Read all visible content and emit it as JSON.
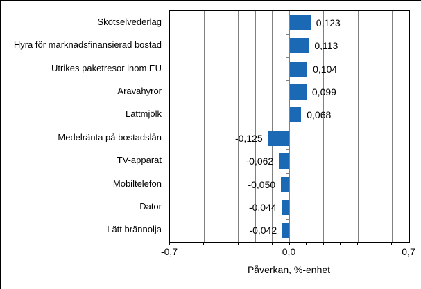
{
  "chart_data": {
    "type": "bar",
    "orientation": "horizontal",
    "xlabel": "Påverkan, %-enhet",
    "categories": [
      "Skötselvederlag",
      "Hyra för marknadsfinansierad bostad",
      "Utrikes paketresor inom EU",
      "Aravahyror",
      "Lättmjölk",
      "Medelränta på bostadslån",
      "TV-apparat",
      "Mobiltelefon",
      "Dator",
      "Lätt brännolja"
    ],
    "values": [
      0.123,
      0.113,
      0.104,
      0.099,
      0.068,
      -0.125,
      -0.062,
      -0.05,
      -0.044,
      -0.042
    ],
    "value_labels": [
      "0,123",
      "0,113",
      "0,104",
      "0,099",
      "0,068",
      "-0,125",
      "-0,062",
      "-0,050",
      "-0,044",
      "-0,042"
    ],
    "xlim": [
      -0.7,
      0.7
    ],
    "x_tick_step": 0.1,
    "x_tick_labels": [
      {
        "value": -0.7,
        "label": "-0,7"
      },
      {
        "value": 0.0,
        "label": "0,0"
      },
      {
        "value": 0.7,
        "label": "0,7"
      }
    ],
    "grid": "vertical",
    "legend": "none",
    "bar_color": "#1B69B4",
    "grid_color": "#808080",
    "frame_color": "#000000",
    "text_color": "#000000"
  }
}
